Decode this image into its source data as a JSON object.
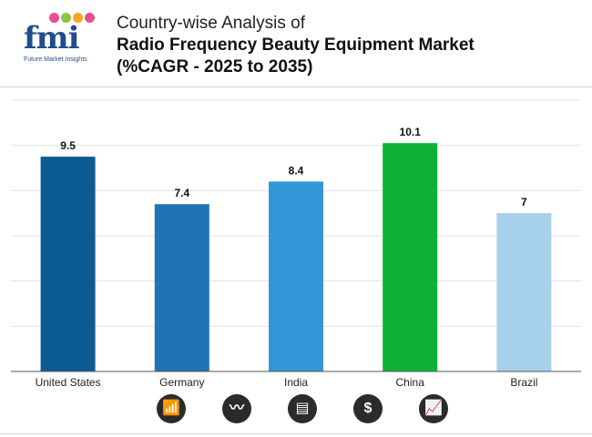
{
  "logo": {
    "text": "fmi",
    "subtitle": "Future Market Insights",
    "dot_colors": [
      "#e84e8a",
      "#8cc63f",
      "#f7a823",
      "#e84e8a"
    ]
  },
  "title": {
    "line1": "Country-wise Analysis of",
    "line2": "Radio Frequency Beauty Equipment Market",
    "line3": "(%CAGR - 2025 to 2035)"
  },
  "chart_data": {
    "type": "bar",
    "categories": [
      "United States",
      "Germany",
      "India",
      "China",
      "Brazil"
    ],
    "values": [
      9.5,
      7.4,
      8.4,
      10.1,
      7
    ],
    "value_labels": [
      "9.5",
      "7.4",
      "8.4",
      "10.1",
      "7"
    ],
    "colors": [
      "#0b5a92",
      "#1f73b7",
      "#3497d9",
      "#0db136",
      "#a7d0ea"
    ],
    "ylim": [
      0,
      12
    ],
    "grid": true,
    "xlabel": "",
    "ylabel": ""
  },
  "footer_icons": [
    "bar-chart-icon",
    "line-chart-icon",
    "document-icon",
    "dollar-icon",
    "trend-chart-icon"
  ],
  "footer_glyphs": [
    "📶",
    "〰",
    "▤",
    "$",
    "📈"
  ]
}
